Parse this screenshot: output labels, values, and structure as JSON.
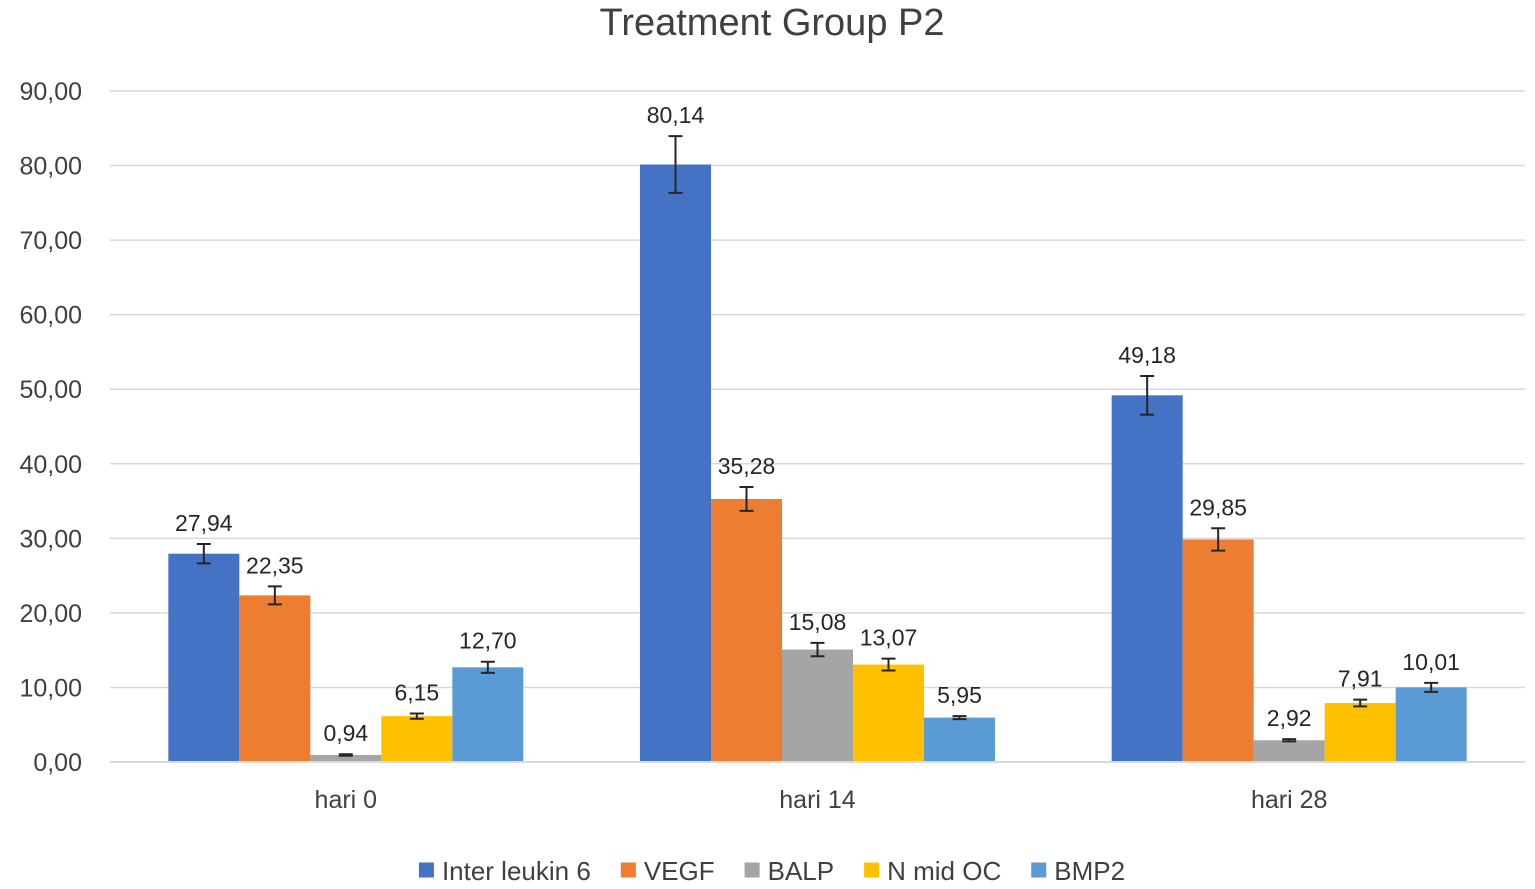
{
  "chart_data": {
    "type": "bar",
    "title": "Treatment Group P2",
    "xlabel": "",
    "ylabel": "",
    "ylim": [
      0,
      90
    ],
    "yticks": [
      "0,00",
      "10,00",
      "20,00",
      "30,00",
      "40,00",
      "50,00",
      "60,00",
      "70,00",
      "80,00",
      "90,00"
    ],
    "ytick_values": [
      0,
      10,
      20,
      30,
      40,
      50,
      60,
      70,
      80,
      90
    ],
    "grid": true,
    "legend_position": "bottom",
    "categories": [
      "hari 0",
      "hari 14",
      "hari 28"
    ],
    "series": [
      {
        "name": "Inter leukin 6",
        "color": "#4472c4",
        "values": [
          27.94,
          80.14,
          49.18
        ],
        "labels": [
          "27,94",
          "80,14",
          "49,18"
        ],
        "errors": [
          1.3,
          3.8,
          2.6
        ]
      },
      {
        "name": "VEGF",
        "color": "#ed7d31",
        "values": [
          22.35,
          35.28,
          29.85
        ],
        "labels": [
          "22,35",
          "35,28",
          "29,85"
        ],
        "errors": [
          1.2,
          1.6,
          1.5
        ]
      },
      {
        "name": "BALP",
        "color": "#a5a5a5",
        "values": [
          0.94,
          15.08,
          2.92
        ],
        "labels": [
          "0,94",
          "15,08",
          "2,92"
        ],
        "errors": [
          0.1,
          0.9,
          0.15
        ]
      },
      {
        "name": "N mid OC",
        "color": "#ffc000",
        "values": [
          6.15,
          13.07,
          7.91
        ],
        "labels": [
          "6,15",
          "13,07",
          "7,91"
        ],
        "errors": [
          0.35,
          0.8,
          0.45
        ]
      },
      {
        "name": "BMP2",
        "color": "#5b9bd5",
        "values": [
          12.7,
          5.95,
          10.01
        ],
        "labels": [
          "12,70",
          "5,95",
          "10,01"
        ],
        "errors": [
          0.75,
          0.2,
          0.6
        ]
      }
    ]
  }
}
